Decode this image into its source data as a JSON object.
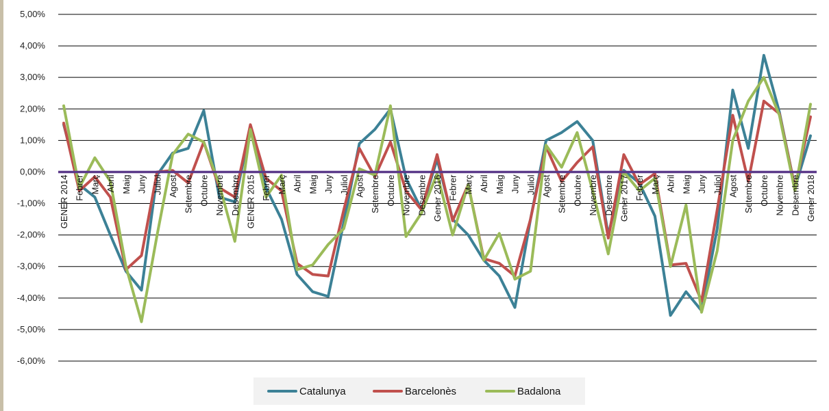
{
  "chart_data": {
    "type": "line",
    "title": "",
    "xlabel": "",
    "ylabel": "",
    "ylim": [
      -6,
      5
    ],
    "ytick_values": [
      5,
      4,
      3,
      2,
      1,
      0,
      -1,
      -2,
      -3,
      -4,
      -5,
      -6
    ],
    "ytick_labels": [
      "5,00%",
      "4,00%",
      "3,00%",
      "2,00%",
      "1,00%",
      "0,00%",
      "-1,00%",
      "-2,00%",
      "-3,00%",
      "-4,00%",
      "-5,00%",
      "-6,00%"
    ],
    "grid": true,
    "legend_position": "bottom",
    "zero_line_color": "#5b3a8a",
    "categories": [
      "GENER 2014",
      "Febrer",
      "Març",
      "Abril",
      "Maig",
      "Juny",
      "Juliol",
      "Agost",
      "Setembre",
      "Octubre",
      "Novembre",
      "Desembre",
      "GENER 2015",
      "Febrer",
      "Març",
      "Abril",
      "Maig",
      "Juny",
      "Juliol",
      "Agost",
      "Setembre",
      "Octubre",
      "Novembre",
      "Desembre",
      "Gener 2016",
      "Febrer",
      "Març",
      "Abril",
      "Maig",
      "Juny",
      "Juliol",
      "Agost",
      "Setembre",
      "Octubre",
      "Novembre",
      "Desembre",
      "Gener 2017",
      "Febrer",
      "Març",
      "Abril",
      "Maig",
      "Juny",
      "Juliol",
      "Agost",
      "Setembre",
      "Octubre",
      "Novembre",
      "Desembre",
      "Gener 2018"
    ],
    "series": [
      {
        "name": "Catalunya",
        "color": "#3c8196",
        "values": [
          1.5,
          -0.4,
          -0.8,
          -2.0,
          -3.15,
          -3.75,
          -0.1,
          0.6,
          0.75,
          1.95,
          -0.8,
          -0.95,
          1.4,
          -0.5,
          -1.5,
          -3.25,
          -3.8,
          -3.95,
          -1.6,
          0.9,
          1.35,
          2.0,
          -0.2,
          -1.2,
          0.4,
          -1.5,
          -2.0,
          -2.8,
          -3.3,
          -4.3,
          -1.5,
          1.0,
          1.25,
          1.6,
          1.0,
          -2.0,
          0.05,
          -0.35,
          -1.4,
          -4.55,
          -3.8,
          -4.4,
          -1.8,
          2.6,
          0.75,
          3.7,
          1.9,
          -0.5,
          1.15
        ]
      },
      {
        "name": "Barcelonès",
        "color": "#c0504d",
        "values": [
          1.55,
          -0.6,
          -0.15,
          -0.8,
          -3.1,
          -2.65,
          0.0,
          0.05,
          -0.35,
          0.95,
          -0.5,
          -0.8,
          1.5,
          -0.2,
          -0.6,
          -2.9,
          -3.25,
          -3.3,
          -1.2,
          0.75,
          -0.15,
          0.95,
          -0.6,
          -1.2,
          0.55,
          -1.55,
          -0.4,
          -2.75,
          -2.9,
          -3.3,
          -1.5,
          0.8,
          -0.3,
          0.3,
          0.8,
          -2.1,
          0.55,
          -0.4,
          -0.05,
          -2.95,
          -2.9,
          -4.1,
          -1.2,
          1.8,
          -0.3,
          2.25,
          1.85,
          -0.5,
          1.75
        ]
      },
      {
        "name": "Badalona",
        "color": "#9bbb59",
        "values": [
          2.1,
          -0.5,
          0.45,
          -0.3,
          -3.0,
          -4.75,
          -2.0,
          0.55,
          1.2,
          0.95,
          -0.4,
          -2.2,
          1.35,
          -0.8,
          -0.1,
          -3.1,
          -2.95,
          -2.3,
          -1.8,
          0.1,
          -0.1,
          2.1,
          -2.05,
          -1.3,
          -0.05,
          -2.0,
          -0.4,
          -2.8,
          -1.95,
          -3.4,
          -3.15,
          0.85,
          0.15,
          1.25,
          -0.6,
          -2.6,
          0.0,
          -0.6,
          -0.2,
          -3.0,
          -1.05,
          -4.45,
          -2.5,
          1.0,
          2.25,
          3.0,
          1.8,
          -0.6,
          2.15
        ]
      }
    ]
  }
}
